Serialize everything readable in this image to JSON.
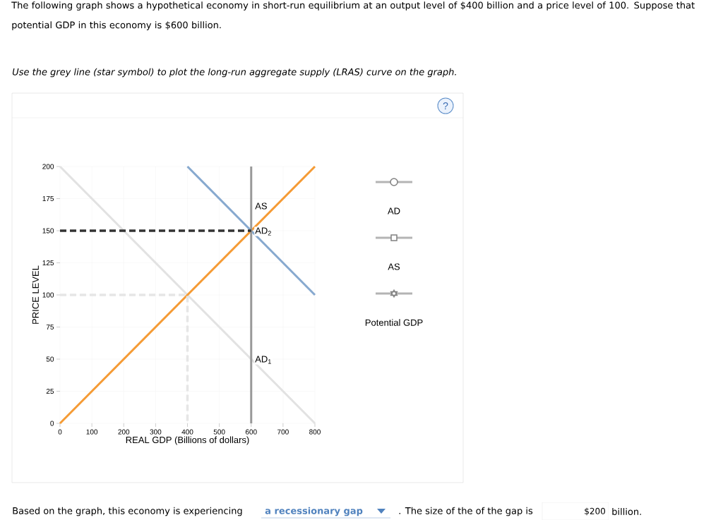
{
  "chart_data": {
    "type": "line",
    "title": "The following graph shows a hypothetical economy in short-run equilibrium at an output level of $400 billion and a price level of 100. Suppose that potential GDP in this economy is $600 billion.",
    "subtitle": "Use the grey line (star symbol) to plot the long-run aggregate supply (LRAS) curve on the graph.",
    "xlabel": "REAL GDP (Billions of dollars)",
    "ylabel": "PRICE LEVEL",
    "xlim": [
      0,
      800
    ],
    "ylim": [
      0,
      200
    ],
    "xticks": [
      0,
      100,
      200,
      300,
      400,
      500,
      600,
      700,
      800
    ],
    "yticks": [
      0,
      25,
      50,
      75,
      100,
      125,
      150,
      175,
      200
    ],
    "grid": true,
    "series": [
      {
        "color": "#e2e2e2",
        "x": [
          0,
          800
        ],
        "values": [
          200,
          0
        ],
        "line_style": "solid"
      },
      {
        "color": "#f59b35",
        "x": [
          0,
          800
        ],
        "values": [
          0,
          200
        ],
        "line_style": "solid"
      },
      {
        "color": "#87a9cf",
        "x": [
          400,
          800
        ],
        "values": [
          200,
          100
        ],
        "line_style": "solid"
      },
      {
        "color": "#999999",
        "x": [
          600,
          600
        ],
        "values": [
          0,
          200
        ],
        "line_style": "solid"
      },
      {
        "color": "#333333",
        "x": [
          0,
          600
        ],
        "values": [
          150,
          150
        ],
        "line_style": "dashed"
      },
      {
        "color": "#e6e6e6",
        "x": [
          0,
          400,
          400
        ],
        "values": [
          100,
          100,
          0
        ],
        "line_style": "dashed"
      }
    ],
    "annotations": [
      "AS",
      "AD$_{2}$",
      "AD$_{1}$",
      "AD",
      "AS",
      "Potential GDP",
      "?",
      "Based on the graph, this economy is experiencing",
      "a recessionary gap",
      ". The size of the of the gap is",
      "$200",
      "billion."
    ]
  }
}
